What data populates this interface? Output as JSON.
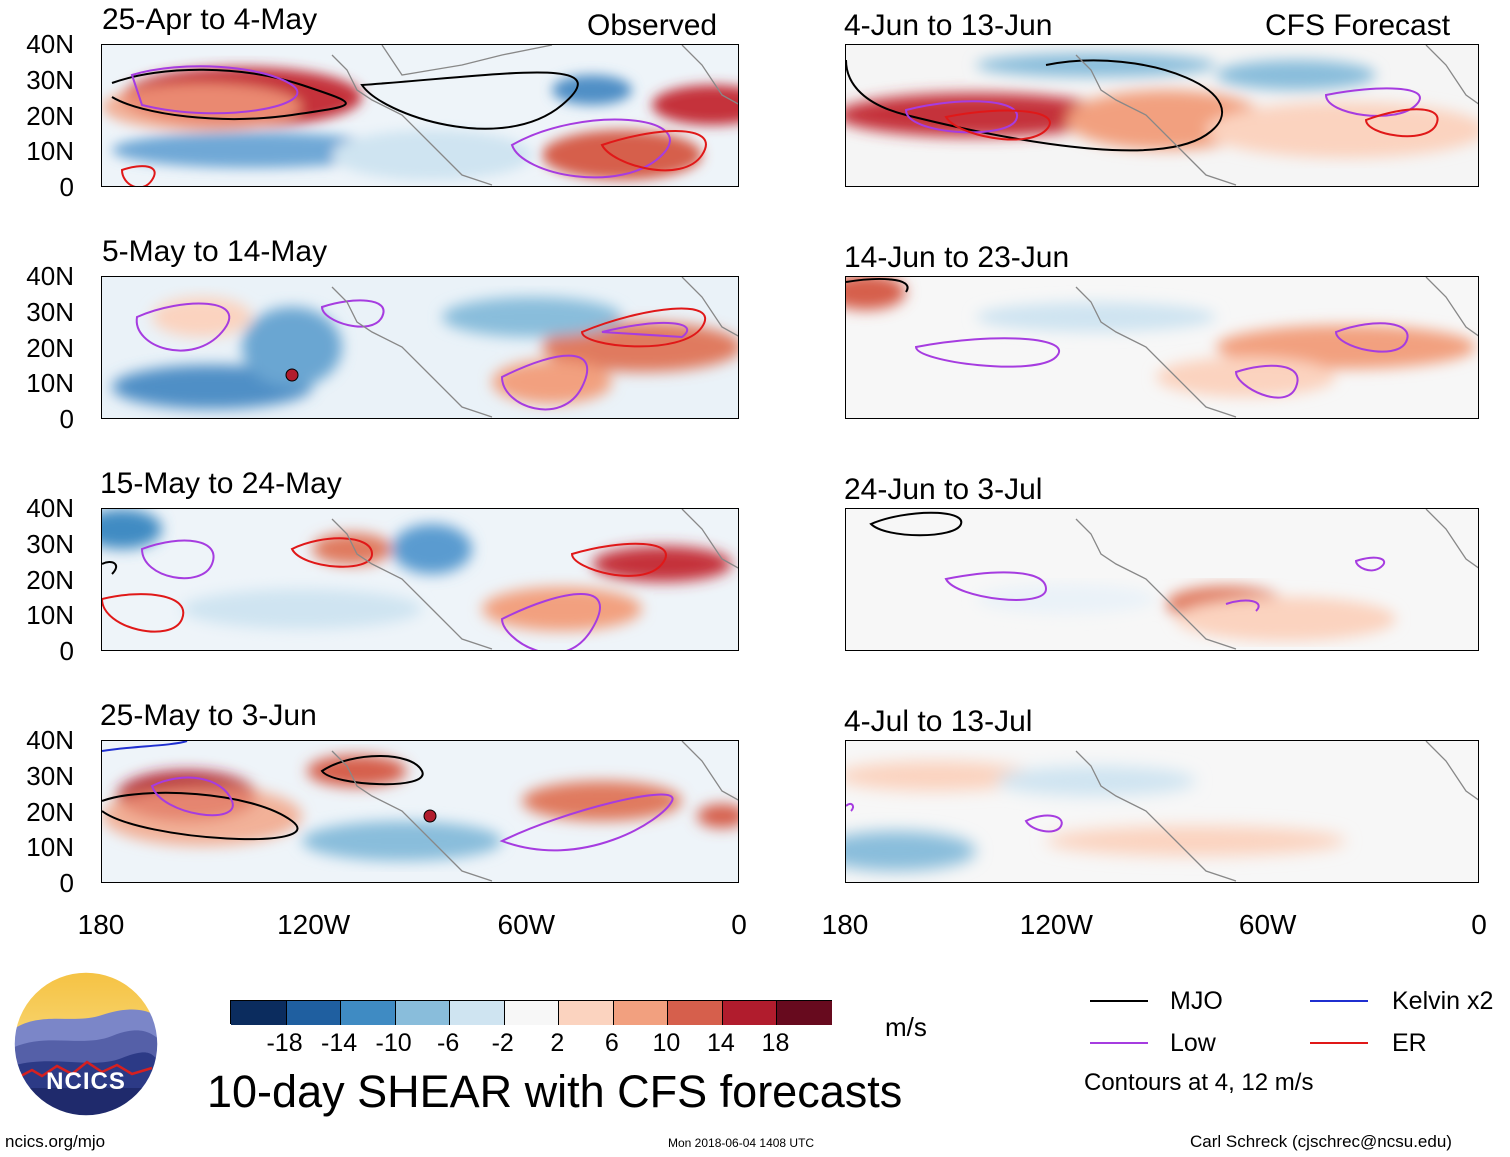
{
  "figure": {
    "title": "10-day SHEAR with CFS forecasts",
    "observed_label": "Observed",
    "forecast_label": "CFS Forecast",
    "units": "m/s",
    "contour_note": "Contours at 4, 12 m/s",
    "website": "ncics.org/mjo",
    "timestamp": "Mon 2018-06-04 1408 UTC",
    "author": "Carl Schreck (cjschrec@ncsu.edu)",
    "logo_text": "NCICS"
  },
  "chart_data": {
    "type": "heatmap",
    "variable": "10-day vertical wind shear anomaly",
    "y_ticks": [
      "40N",
      "30N",
      "20N",
      "10N",
      "0"
    ],
    "x_ticks": [
      "180",
      "120W",
      "60W",
      "0"
    ],
    "xlim": [
      -180,
      0
    ],
    "ylim": [
      0,
      40
    ],
    "colorbar_levels": [
      "-18",
      "-14",
      "-10",
      "-6",
      "-2",
      "2",
      "6",
      "10",
      "14",
      "18"
    ],
    "colorbar_colors": [
      "#0b2c5e",
      "#1f5fa0",
      "#3f8bc3",
      "#89bddb",
      "#cfe4f1",
      "#f7f7f7",
      "#fbd3bf",
      "#f2a07f",
      "#d65f4c",
      "#b11c2d",
      "#670a1e"
    ],
    "legend": [
      {
        "label": "MJO",
        "color": "#000000"
      },
      {
        "label": "Kelvin x2",
        "color": "#1f2fd0"
      },
      {
        "label": "Low",
        "color": "#a63ce0"
      },
      {
        "label": "ER",
        "color": "#e01818"
      }
    ],
    "panels": [
      {
        "title": "25-Apr to 4-May",
        "column": "observed"
      },
      {
        "title": "5-May to 14-May",
        "column": "observed"
      },
      {
        "title": "15-May to 24-May",
        "column": "observed"
      },
      {
        "title": "25-May to 3-Jun",
        "column": "observed"
      },
      {
        "title": "4-Jun to 13-Jun",
        "column": "forecast"
      },
      {
        "title": "14-Jun to 23-Jun",
        "column": "forecast"
      },
      {
        "title": "24-Jun to 3-Jul",
        "column": "forecast"
      },
      {
        "title": "4-Jul to 13-Jul",
        "column": "forecast"
      }
    ]
  }
}
